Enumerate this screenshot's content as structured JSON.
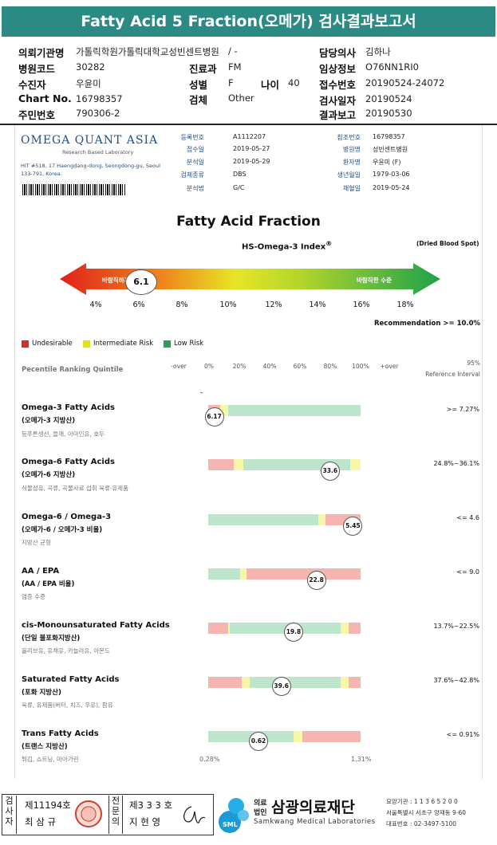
{
  "header": {
    "title": "Fatty Acid 5 Fraction(오메가) 검사결과보고서",
    "left_rows": [
      {
        "label": "의뢰기관명",
        "value": "가톨릭학원가톨릭대학교성빈센트병원"
      },
      {
        "label": "병원코드",
        "value": "30282"
      },
      {
        "label": "수진자",
        "value": "우윤미"
      },
      {
        "label": "Chart No.",
        "value": "16798357"
      },
      {
        "label": "주민번호",
        "value": "790306-2"
      }
    ],
    "mid_rows": [
      {
        "label": "",
        "value": "/ -"
      },
      {
        "label": "진료과",
        "value": "FM"
      },
      {
        "label": "성별",
        "value": "F"
      },
      {
        "label": "검체",
        "value": "Other"
      }
    ],
    "age": {
      "label": "나이",
      "value": "40"
    },
    "right_rows": [
      {
        "label": "담당의사",
        "value": "김하나"
      },
      {
        "label": "임상정보",
        "value": "O76NN1RI0"
      },
      {
        "label": "접수번호",
        "value": "20190524-24072"
      },
      {
        "label": "검사일자",
        "value": "20190524"
      },
      {
        "label": "결과보고",
        "value": "20190530"
      }
    ]
  },
  "lab": {
    "logo": "OMEGA QUANT ASIA",
    "tagline": "Research Based Laboratory",
    "address": "HIT #518, 17 Haengdang-dong, Seongdong-gu, Seoul 133-791, Korea.",
    "info_left": [
      {
        "label": "등록번호",
        "value": "A1112207"
      },
      {
        "label": "접수일",
        "value": "2019-05-27"
      },
      {
        "label": "분석일",
        "value": "2019-05-29"
      },
      {
        "label": "검체종류",
        "value": "DBS"
      },
      {
        "label": "분석법",
        "value": "G/C"
      }
    ],
    "info_right": [
      {
        "label": "참조번호",
        "value": "16798357"
      },
      {
        "label": "병원명",
        "value": "성빈센트병원"
      },
      {
        "label": "환자명",
        "value": "우윤미 (F)"
      },
      {
        "label": "생년월일",
        "value": "1979-03-06"
      },
      {
        "label": "채혈일",
        "value": "2019-05-24"
      }
    ]
  },
  "report": {
    "title": "Fatty Acid Fraction",
    "index_title": "HS-Omega-3 Index",
    "index_sup": "®",
    "sample_type": "(Dried Blood Spot)",
    "arrow_left_label": "바람직하지 않은 수준",
    "arrow_right_label": "바람직한 수준",
    "hs_omega3_index": "6.1",
    "axis_ticks": [
      "4%",
      "6%",
      "8%",
      "10%",
      "12%",
      "14%",
      "16%",
      "18%"
    ],
    "recommendation": "Recommendation  >= 10.0%",
    "legend": [
      {
        "label": "Undesirable",
        "color": "#e02a20"
      },
      {
        "label": "Intermediate Risk",
        "color": "#e4e01c"
      },
      {
        "label": "Low Risk",
        "color": "#22a54c"
      }
    ],
    "percentile_heading": "Pecentile Ranking Quintile",
    "col_headers": [
      "-over",
      "0%",
      "20%",
      "40%",
      "60%",
      "80%",
      "100%",
      "+over"
    ],
    "ref_header_1": "95%",
    "ref_header_2": "Reference Interval",
    "dash_mark": "-",
    "scale_min": "0.28%",
    "scale_max": "1.31%"
  },
  "colors": {
    "red": "#f5b5b0",
    "yellow": "#f8f6a8",
    "green": "#bde5cc",
    "teal": "#2c8a85"
  },
  "fatty_acids": [
    {
      "name": "Omega-3 Fatty Acids",
      "korean": "(오메가-3 지방산)",
      "foods": "등푸른생선, 들깨, 아마인유, 호두",
      "value": "6.17",
      "position": 0.04,
      "reference": ">= 7.27%",
      "segments": [
        [
          "red",
          0.08
        ],
        [
          "yellow",
          0.05
        ],
        [
          "green",
          0.87
        ]
      ]
    },
    {
      "name": "Omega-6 Fatty Acids",
      "korean": "(오메가-6 지방산)",
      "foods": "식물성유, 곡류, 곡물사료 섭취 육류·유제품",
      "value": "33.6",
      "position": 0.8,
      "reference": "24.8%~36.1%",
      "segments": [
        [
          "red",
          0.17
        ],
        [
          "yellow",
          0.06
        ],
        [
          "green",
          0.7
        ],
        [
          "yellow",
          0.07
        ]
      ]
    },
    {
      "name": "Omega-6 / Omega-3",
      "korean": "(오메가-6 / 오메가-3 비율)",
      "foods": "지방산 균형",
      "value": "5.45",
      "position": 0.95,
      "reference": "<= 4.6",
      "segments": [
        [
          "green",
          0.72
        ],
        [
          "yellow",
          0.05
        ],
        [
          "red",
          0.23
        ]
      ]
    },
    {
      "name": "AA / EPA",
      "korean": "(AA / EPA 비율)",
      "foods": "염증 수준",
      "value": "22.8",
      "position": 0.71,
      "reference": "<= 9.0",
      "segments": [
        [
          "green",
          0.21
        ],
        [
          "yellow",
          0.04
        ],
        [
          "red",
          0.75
        ]
      ]
    },
    {
      "name": "cis-Monounsaturated Fatty Acids",
      "korean": "(단일 불포화지방산)",
      "foods": "올리브유, 유채유, 카놀라유, 아몬드",
      "value": "19.8",
      "position": 0.56,
      "reference": "13.7%~22.5%",
      "segments": [
        [
          "red",
          0.13
        ],
        [
          "yellow",
          0.01
        ],
        [
          "green",
          0.73
        ],
        [
          "yellow",
          0.05
        ],
        [
          "red",
          0.08
        ]
      ]
    },
    {
      "name": "Saturated Fatty Acids",
      "korean": "(포화 지방산)",
      "foods": "육류, 유제품(버터, 치즈, 우유), 팜유",
      "value": "39.6",
      "position": 0.48,
      "reference": "37.6%~42.8%",
      "segments": [
        [
          "red",
          0.22
        ],
        [
          "yellow",
          0.05
        ],
        [
          "green",
          0.6
        ],
        [
          "yellow",
          0.05
        ],
        [
          "red",
          0.08
        ]
      ]
    },
    {
      "name": "Trans Fatty Acids",
      "korean": "(트랜스 지방산)",
      "foods": "튀김, 쇼트닝, 마아가린",
      "value": "0.62",
      "position": 0.33,
      "reference": "<= 0.91%",
      "segments": [
        [
          "green",
          0.56
        ],
        [
          "yellow",
          0.06
        ],
        [
          "red",
          0.38
        ]
      ]
    }
  ],
  "footer": {
    "vert_1": "검사자",
    "license_1": "제11194호",
    "name_1": "최 삼 규",
    "vert_2": "전문의",
    "license_2": "제3 3 3 호",
    "name_2": "지 현 영",
    "logo_text": "SML",
    "corp_1": "의료",
    "corp_2": "법인",
    "org_name": "삼광의료재단",
    "org_en": "Samkwang Medical Laboratories",
    "org_code": "요양기관 : 1 1 3 6 5 2 0 0",
    "org_addr": "서울특별시 서초구 양재동 9-60",
    "org_tel": "대표번호 : 02-3497-5100"
  }
}
